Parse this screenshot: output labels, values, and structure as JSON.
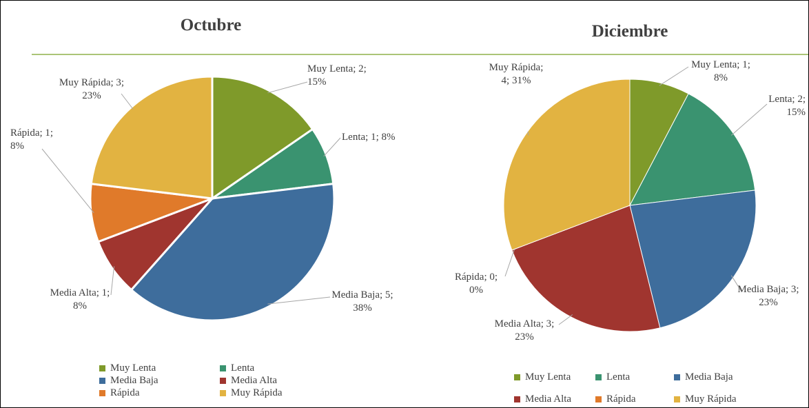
{
  "chart_data": [
    {
      "type": "pie",
      "title": "Octubre",
      "categories": [
        "Muy Lenta",
        "Lenta",
        "Media Baja",
        "Media Alta",
        "Rápida",
        "Muy Rápida"
      ],
      "values": [
        2,
        1,
        5,
        1,
        1,
        3
      ],
      "value_labels": [
        "Muy Lenta; 2; 15%",
        "Lenta; 1; 8%",
        "Media Baja; 5; 38%",
        "Media Alta; 1; 8%",
        "Rápida; 1; 8%",
        "Muy Rápida; 3; 23%"
      ],
      "colors": [
        "#7f9a2a",
        "#3a9370",
        "#3e6d9c",
        "#a0352f",
        "#e07a2a",
        "#e2b341"
      ]
    },
    {
      "type": "pie",
      "title": "Diciembre",
      "categories": [
        "Muy Lenta",
        "Lenta",
        "Media Baja",
        "Media Alta",
        "Rápida",
        "Muy Rápida"
      ],
      "values": [
        1,
        2,
        3,
        3,
        0,
        4
      ],
      "value_labels": [
        "Muy Lenta; 1; 8%",
        "Lenta; 2; 15%",
        "Media Baja; 3; 23%",
        "Media Alta; 3; 23%",
        "Rápida; 0; 0%",
        "Muy Rápida; 4; 31%"
      ],
      "colors": [
        "#7f9a2a",
        "#3a9370",
        "#3e6d9c",
        "#a0352f",
        "#e07a2a",
        "#e2b341"
      ]
    }
  ]
}
